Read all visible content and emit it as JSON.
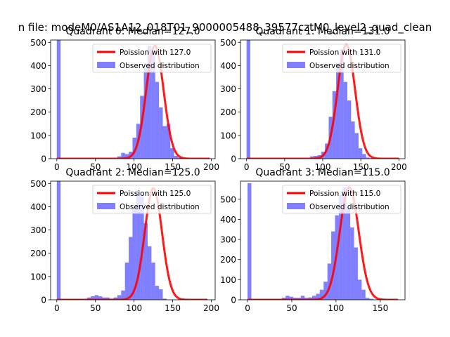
{
  "figure": {
    "suptitle": "n file: modeM0/AS1A12_018T01_9000005488_39577cztM0_level2_quad_clean",
    "colors": {
      "hist": "#0000ff",
      "fit": "#ff0000"
    }
  },
  "chart_data": [
    {
      "type": "bar",
      "title": "Quadrant 0: Median=127.0",
      "legend": [
        "Poission with 127.0",
        "Observed distribution"
      ],
      "legend_loc": "upper-right",
      "xlim": [
        -8,
        205
      ],
      "ylim": [
        0,
        510
      ],
      "xticks": [
        0,
        50,
        100,
        150,
        200
      ],
      "yticks": [
        0,
        100,
        200,
        300,
        400,
        500
      ],
      "mu": 127.0,
      "fit_peak": 485,
      "fit_xmax": 198,
      "bins": {
        "start": 0,
        "width": 4.9,
        "values": [
          510,
          0,
          0,
          0,
          0,
          0,
          0,
          0,
          0,
          0,
          0,
          0,
          0,
          0,
          0,
          0,
          10,
          25,
          20,
          30,
          90,
          150,
          270,
          390,
          485,
          460,
          330,
          220,
          140,
          150,
          45,
          12,
          5,
          2,
          1,
          0,
          0,
          0,
          0,
          0,
          0
        ]
      }
    },
    {
      "type": "bar",
      "title": "Quadrant 1: Median=131.0",
      "legend": [
        "Poission with 131.0",
        "Observed distribution"
      ],
      "legend_loc": "upper-right",
      "xlim": [
        -8,
        208
      ],
      "ylim": [
        0,
        510
      ],
      "xticks": [
        0,
        50,
        100,
        150,
        200
      ],
      "yticks": [
        0,
        100,
        200,
        300,
        400,
        500
      ],
      "mu": 131.0,
      "fit_peak": 490,
      "fit_xmax": 200,
      "bins": {
        "start": 0,
        "width": 4.9,
        "values": [
          510,
          0,
          0,
          0,
          0,
          0,
          0,
          0,
          0,
          0,
          0,
          0,
          0,
          0,
          0,
          0,
          0,
          10,
          12,
          15,
          30,
          65,
          180,
          290,
          410,
          470,
          330,
          250,
          160,
          110,
          45,
          20,
          5,
          2,
          1,
          0,
          0,
          0,
          0,
          0,
          0
        ]
      }
    },
    {
      "type": "bar",
      "title": "Quadrant 2: Median=125.0",
      "legend": [
        "Poission with 125.0",
        "Observed distribution"
      ],
      "legend_loc": "upper-right",
      "xlim": [
        -8,
        205
      ],
      "ylim": [
        0,
        510
      ],
      "xticks": [
        0,
        50,
        100,
        150,
        200
      ],
      "yticks": [
        0,
        100,
        200,
        300,
        400,
        500
      ],
      "mu": 125.0,
      "fit_peak": 480,
      "fit_xmax": 195,
      "bins": {
        "start": 0,
        "width": 4.9,
        "values": [
          510,
          0,
          0,
          0,
          0,
          0,
          0,
          0,
          10,
          15,
          20,
          15,
          10,
          10,
          5,
          10,
          20,
          40,
          160,
          270,
          390,
          470,
          445,
          330,
          230,
          160,
          60,
          45,
          5,
          0,
          0,
          0,
          0,
          0,
          0,
          0,
          0,
          0,
          0,
          0
        ]
      }
    },
    {
      "type": "bar",
      "title": "Quadrant 3: Median=115.0",
      "legend": [
        "Poission with 115.0",
        "Observed distribution"
      ],
      "legend_loc": "upper-right",
      "xlim": [
        -8,
        178
      ],
      "ylim": [
        0,
        590
      ],
      "xticks": [
        0,
        50,
        100,
        150
      ],
      "yticks": [
        0,
        100,
        200,
        300,
        400,
        500
      ],
      "mu": 115.0,
      "fit_peak": 560,
      "fit_xmax": 170,
      "bins": {
        "start": 0,
        "width": 4.3,
        "values": [
          580,
          0,
          0,
          0,
          0,
          0,
          0,
          0,
          0,
          10,
          20,
          15,
          10,
          10,
          20,
          10,
          12,
          20,
          30,
          50,
          90,
          180,
          340,
          420,
          520,
          560,
          460,
          360,
          260,
          100,
          50,
          10,
          5,
          0,
          0,
          0,
          0,
          0,
          0,
          0
        ]
      }
    }
  ]
}
